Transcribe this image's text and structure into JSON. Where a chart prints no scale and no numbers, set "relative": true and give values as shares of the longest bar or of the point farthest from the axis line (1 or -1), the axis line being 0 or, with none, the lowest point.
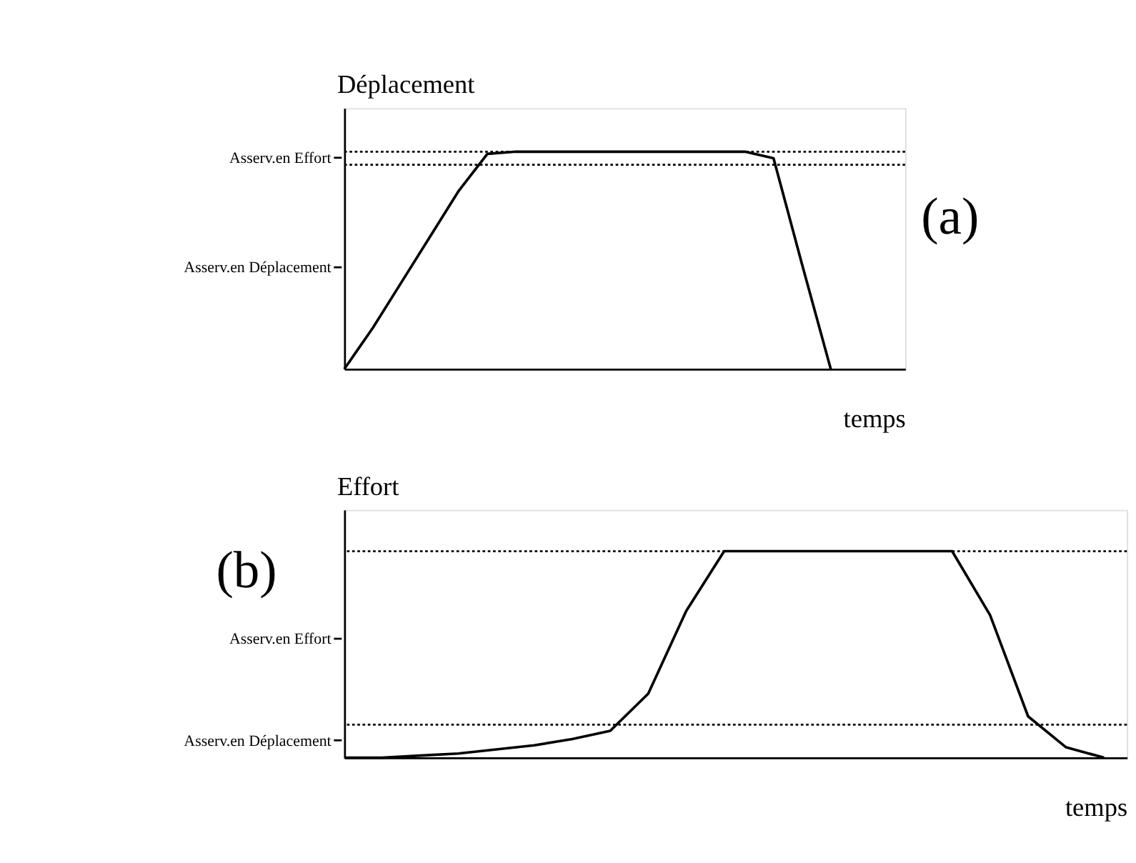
{
  "chart_data": [
    {
      "type": "line",
      "relative": true,
      "ylabel": "Déplacement",
      "xlabel": "temps",
      "legend": false,
      "grid": false,
      "line_style": "solid",
      "marker": "none",
      "categories": [
        null,
        null,
        null,
        null,
        null,
        null,
        null,
        null,
        null,
        null,
        null,
        null,
        null,
        null,
        null,
        null,
        null,
        null,
        null,
        null
      ],
      "series": [
        {
          "color": "#000000",
          "values": [
            0,
            0.19,
            0.4,
            0.61,
            0.82,
            0.99,
            1,
            1,
            1,
            1,
            1,
            1,
            1,
            1,
            1,
            0.97,
            0.48,
            0,
            null,
            null
          ]
        }
      ],
      "ref_lines": [
        {
          "axis": "y",
          "value": 1,
          "line_style": "dotted",
          "color": "#000000"
        },
        {
          "axis": "y",
          "value": 0.94,
          "line_style": "dotted",
          "color": "#000000"
        }
      ],
      "annotations": [
        "(a)",
        "Asserv.en Déplacement",
        "Asserv.en Effort"
      ]
    },
    {
      "type": "line",
      "relative": true,
      "ylabel": "Effort",
      "xlabel": "temps",
      "legend": false,
      "grid": false,
      "line_style": "solid",
      "marker": "none",
      "categories": [
        null,
        null,
        null,
        null,
        null,
        null,
        null,
        null,
        null,
        null,
        null,
        null,
        null,
        null,
        null,
        null,
        null,
        null,
        null,
        null,
        null
      ],
      "series": [
        {
          "color": "#000000",
          "values": [
            0,
            0,
            0.01,
            0.02,
            0.04,
            0.06,
            0.09,
            0.13,
            0.31,
            0.71,
            1,
            1,
            1,
            1,
            1,
            1,
            1,
            0.69,
            0.2,
            0.05,
            0
          ]
        }
      ],
      "ref_lines": [
        {
          "axis": "y",
          "value": 1,
          "line_style": "dotted",
          "color": "#000000"
        },
        {
          "axis": "y",
          "value": 0.16,
          "line_style": "dotted",
          "color": "#000000"
        }
      ],
      "annotations": [
        "(b)",
        "Asserv.en Effort",
        "Asserv.en Déplacement"
      ]
    }
  ]
}
